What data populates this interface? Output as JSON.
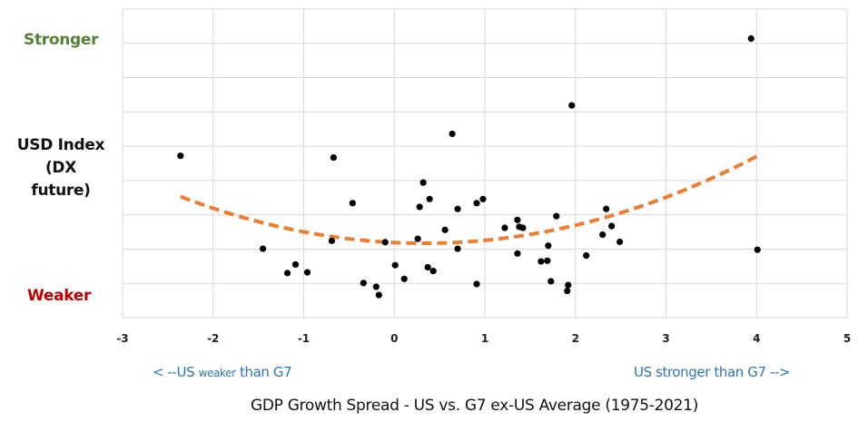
{
  "chart_data": {
    "type": "scatter",
    "xlabel": "GDP Growth Spread - US vs. G7 ex-US Average (1975-2021)",
    "ylabel": "USD Index (DX future)",
    "y_high_label": "Stronger",
    "y_low_label": "Weaker",
    "x_left_note_prefix": "< --US ",
    "x_left_note_small": "weaker",
    "x_left_note_suffix": " than G7",
    "x_right_note": "US stronger than G7 -->",
    "xlim": [
      -3,
      5
    ],
    "ylim": [
      0,
      9
    ],
    "x_ticks": [
      "-3",
      "-2",
      "-1",
      "0",
      "1",
      "2",
      "3",
      "4",
      "5"
    ],
    "y_tick_labels_shown": false,
    "grid": true,
    "colors": {
      "points": "#000000",
      "trend": "#ed7d31",
      "stronger": "#538135",
      "weaker": "#c00000",
      "notes": "#2e75b6",
      "grid": "#d9d9d9"
    },
    "points": [
      [
        -2.36,
        4.72
      ],
      [
        -1.45,
        2.01
      ],
      [
        -1.18,
        1.3
      ],
      [
        -1.09,
        1.55
      ],
      [
        -0.96,
        1.32
      ],
      [
        -0.67,
        4.67
      ],
      [
        -0.69,
        2.24
      ],
      [
        -0.46,
        3.34
      ],
      [
        -0.34,
        1.01
      ],
      [
        -0.2,
        0.9
      ],
      [
        -0.17,
        0.66
      ],
      [
        -0.1,
        2.2
      ],
      [
        0.01,
        1.53
      ],
      [
        0.11,
        1.13
      ],
      [
        0.26,
        2.3
      ],
      [
        0.28,
        3.23
      ],
      [
        0.32,
        3.94
      ],
      [
        0.39,
        3.46
      ],
      [
        0.37,
        1.47
      ],
      [
        0.43,
        1.36
      ],
      [
        0.56,
        2.56
      ],
      [
        0.64,
        5.36
      ],
      [
        0.7,
        3.17
      ],
      [
        0.7,
        2.01
      ],
      [
        0.91,
        3.34
      ],
      [
        0.91,
        0.98
      ],
      [
        0.98,
        3.46
      ],
      [
        3.94,
        8.14
      ],
      [
        1.96,
        6.19
      ],
      [
        1.22,
        2.62
      ],
      [
        1.36,
        2.85
      ],
      [
        1.38,
        2.65
      ],
      [
        1.42,
        2.62
      ],
      [
        1.36,
        1.87
      ],
      [
        1.79,
        2.96
      ],
      [
        1.7,
        2.1
      ],
      [
        1.62,
        1.64
      ],
      [
        1.69,
        1.66
      ],
      [
        1.73,
        1.06
      ],
      [
        1.92,
        0.95
      ],
      [
        1.91,
        0.78
      ],
      [
        2.12,
        1.81
      ],
      [
        2.3,
        2.42
      ],
      [
        2.34,
        3.17
      ],
      [
        2.4,
        2.67
      ],
      [
        2.49,
        2.21
      ],
      [
        4.01,
        1.98
      ]
    ],
    "trendline": {
      "type": "polynomial-2",
      "style": "dashed",
      "x_range": [
        -2.36,
        4.0
      ],
      "a": 0.188,
      "h": 0.33,
      "k": 2.17
    }
  }
}
